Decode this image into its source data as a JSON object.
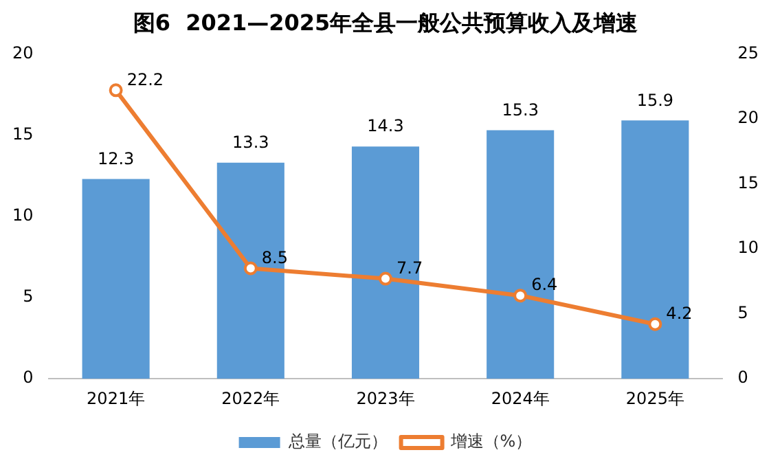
{
  "chart_data": {
    "type": "bar",
    "title": "图6  2021—2025年全县一般公共预算收入及增速",
    "categories": [
      "2021年",
      "2022年",
      "2023年",
      "2024年",
      "2025年"
    ],
    "series": [
      {
        "name": "总量（亿元）",
        "color": "#5b9bd5",
        "values": [
          12.3,
          13.3,
          14.3,
          15.3,
          15.9
        ]
      },
      {
        "name": "增速（%）",
        "type": "line",
        "axis": "y2",
        "color": "#ed7d31",
        "values": [
          22.2,
          8.5,
          7.7,
          6.4,
          4.2
        ]
      }
    ],
    "ylim": [
      0,
      20
    ],
    "yticks": [
      0,
      5,
      10,
      15,
      20
    ],
    "y2lim": [
      0,
      25
    ],
    "y2ticks": [
      0,
      5,
      10,
      15,
      20,
      25
    ],
    "data_labels": true,
    "legend": "bottom",
    "grid": false,
    "marker": "circle",
    "line_style": "solid"
  }
}
